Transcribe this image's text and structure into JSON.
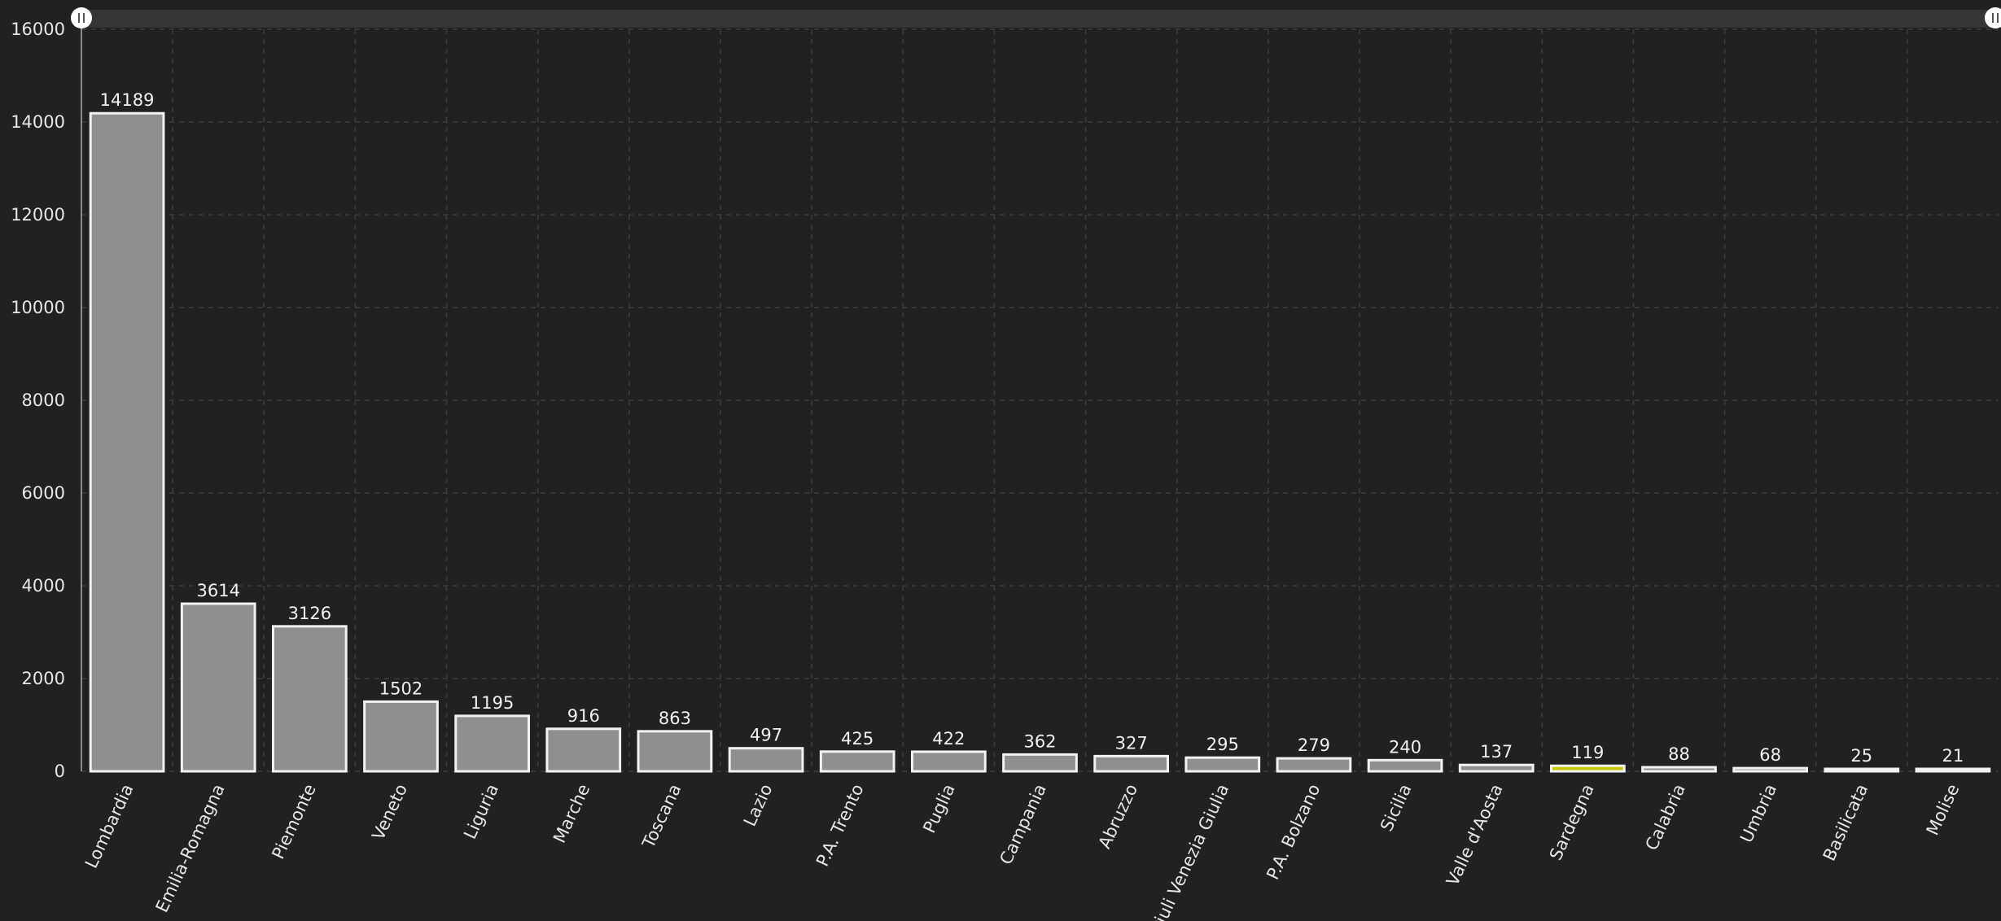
{
  "chart_data": {
    "type": "bar",
    "categories": [
      "Lombardia",
      "Emilia-Romagna",
      "Piemonte",
      "Veneto",
      "Liguria",
      "Marche",
      "Toscana",
      "Lazio",
      "P.A. Trento",
      "Puglia",
      "Campania",
      "Abruzzo",
      "Friuli Venezia Giulia",
      "P.A. Bolzano",
      "Sicilia",
      "Valle d'Aosta",
      "Sardegna",
      "Calabria",
      "Umbria",
      "Basilicata",
      "Molise"
    ],
    "values": [
      14189,
      3614,
      3126,
      1502,
      1195,
      916,
      863,
      497,
      425,
      422,
      362,
      327,
      295,
      279,
      240,
      137,
      119,
      88,
      68,
      25,
      21
    ],
    "highlighted_category": "Sardegna",
    "ylim": [
      0,
      16000
    ],
    "yticks": [
      0,
      2000,
      4000,
      6000,
      8000,
      10000,
      12000,
      14000,
      16000
    ],
    "grid": true,
    "zoom_slider": {
      "position": "top",
      "range": [
        0,
        1
      ]
    },
    "colors": {
      "background": "#212121",
      "bar_fill": "#8f8f8f",
      "bar_stroke": "#f2f2f2",
      "highlight_fill": "#c8c800",
      "text": "#e6e6e6",
      "grid": "#3c3c3c",
      "slider_track": "#353535",
      "slider_handle": "#ffffff"
    }
  }
}
